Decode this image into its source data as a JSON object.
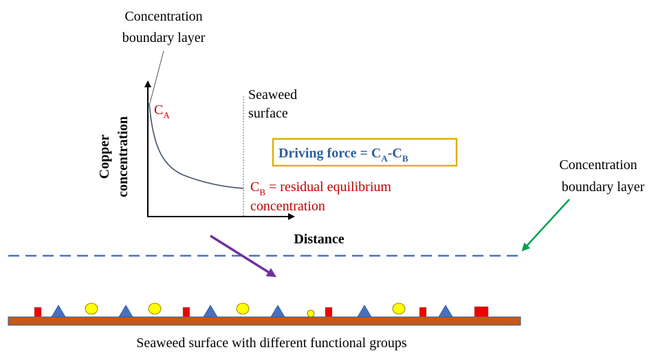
{
  "top_label": {
    "line1": "Concentration",
    "line2": "boundary layer"
  },
  "y_axis_label": {
    "line1": "Copper",
    "line2": "concentration"
  },
  "x_axis_label": "Distance",
  "seaweed_label": {
    "line1": "Seaweed",
    "line2": "surface"
  },
  "ca_label": {
    "main": "C",
    "sub": "A"
  },
  "cb_label": {
    "main": "C",
    "sub": "B",
    "rest": " = residual equilibrium",
    "line2": "concentration"
  },
  "driving_force": {
    "prefix": "Driving force = C",
    "sub_a": "A",
    "dash": "-C",
    "sub_b": "B"
  },
  "right_label": {
    "line1": "Concentration",
    "line2": "boundary layer"
  },
  "bottom_label": "Seaweed surface with different functional groups",
  "colors": {
    "text": "#000000",
    "red_text": "#c00000",
    "blue_text": "#2e5f9e",
    "box_border": "#e0b000",
    "curve": "#44546a",
    "dashed_line": "#4472c4",
    "purple_arrow": "#7030a0",
    "green_arrow": "#00a050",
    "surface_fill": "#c55a11",
    "surface_edge": "#2f5597",
    "square": "#ee0000",
    "triangle": "#4472c4",
    "circle": "#ffff00"
  },
  "functional_groups": [
    "square",
    "triangle",
    "circle",
    "triangle",
    "circle",
    "square",
    "triangle",
    "circle",
    "triangle",
    "circle",
    "square",
    "triangle",
    "circle",
    "square",
    "triangle",
    "square"
  ]
}
